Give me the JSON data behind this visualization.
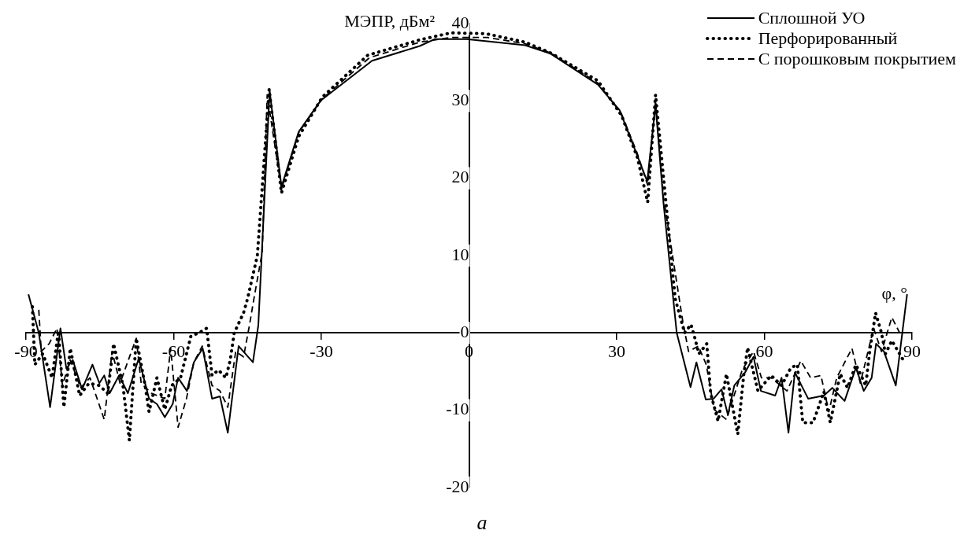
{
  "chart_data": {
    "type": "line",
    "title": "а",
    "xlabel": "φ, °",
    "ylabel": "МЭПР, дБм²",
    "xlim": [
      -90,
      90
    ],
    "xticks": [
      -90,
      -60,
      -30,
      0,
      30,
      60,
      90
    ],
    "ylim": [
      -20,
      40
    ],
    "yticks": [
      -20,
      -10,
      0,
      10,
      20,
      30,
      40
    ],
    "grid": false,
    "legend": "top right",
    "marker": "none",
    "series": [
      {
        "name": "Сплошной УО",
        "color": "#000000",
        "line_style": "solid",
        "x": [
          -89.5,
          -87.4,
          -85.1,
          -83,
          -81.8,
          -80.5,
          -78.6,
          -76.5,
          -75.1,
          -74.1,
          -73,
          -71.1,
          -69.3,
          -67.1,
          -65,
          -63.4,
          -61.8,
          -60.2,
          -59.1,
          -57.3,
          -55.9,
          -54.1,
          -52.2,
          -50.6,
          -49,
          -46.8,
          -43.9,
          -42.8,
          -40.5,
          -38.1,
          -34.6,
          -30.2,
          -19.7,
          -10,
          -6.9,
          -0.5,
          11.4,
          16.6,
          26.2,
          30.6,
          33.1,
          36.2,
          37.9,
          39.5,
          42.2,
          45,
          46.2,
          48.1,
          49.7,
          51.3,
          52.6,
          53.9,
          56.1,
          57.8,
          59.3,
          62.2,
          63.5,
          64.9,
          66.2,
          68.9,
          72.1,
          73.8,
          76.3,
          78.6,
          80.2,
          81.8,
          82.7,
          84.3,
          86.7,
          89
        ],
        "values": [
          5,
          0,
          -9.6,
          0.6,
          -4.6,
          -3.5,
          -7.3,
          -4.1,
          -6.5,
          -5.5,
          -7.8,
          -5.5,
          -7.8,
          -3.3,
          -8.5,
          -9.2,
          -10.9,
          -9.2,
          -5.8,
          -7.5,
          -3.8,
          -2,
          -8.5,
          -8.2,
          -12.9,
          -1.7,
          -3.8,
          1,
          31.3,
          18.9,
          26,
          30,
          35.2,
          37.1,
          38,
          38,
          37.2,
          36.1,
          32.1,
          28.8,
          24.7,
          19.6,
          29.5,
          16.9,
          0,
          -7,
          -3.8,
          -8.6,
          -8.5,
          -7.3,
          -10.6,
          -6.8,
          -5.1,
          -3.1,
          -7.5,
          -8.1,
          -5.8,
          -12.9,
          -5.1,
          -8.5,
          -8.1,
          -7.1,
          -8.8,
          -4.5,
          -7.5,
          -5.8,
          -1.4,
          -2.4,
          -6.8,
          5
        ]
      },
      {
        "name": "Перфорированный",
        "color": "#000000",
        "line_style": "dotted",
        "x": [
          -88.7,
          -88.2,
          -86.6,
          -84.7,
          -83.4,
          -82.3,
          -81,
          -79.1,
          -77.2,
          -75.1,
          -73.4,
          -72.2,
          -70.3,
          -69,
          -67.6,
          -65.8,
          -65,
          -63.4,
          -61.8,
          -60.4,
          -58.6,
          -56.5,
          -54.9,
          -53.3,
          -52.2,
          -50.9,
          -49.4,
          -48.5,
          -47.7,
          -45.8,
          -45,
          -43,
          -40.6,
          -38.1,
          -34.6,
          -29.8,
          -20.6,
          -10,
          -3.7,
          3.4,
          11.4,
          16.6,
          26.2,
          31,
          34.2,
          36.3,
          37.9,
          41.9,
          43.8,
          45.1,
          45.9,
          46.7,
          48.3,
          49.1,
          50.6,
          52.3,
          54.6,
          55.8,
          56.6,
          58.7,
          61.4,
          63.5,
          65.4,
          66.7,
          67.8,
          69.9,
          72.1,
          73.4,
          75.4,
          76.9,
          78.6,
          80.6,
          81.4,
          82.6,
          83.8,
          84.6,
          85.9,
          88.2
        ],
        "values": [
          3.4,
          -4.1,
          -2.7,
          -5.8,
          0.3,
          -9.6,
          -2,
          -8.1,
          -6.5,
          -6.8,
          -7.8,
          -1.4,
          -6.8,
          -13.9,
          -0.7,
          -6.8,
          -10.2,
          -5.8,
          -9.9,
          -6.8,
          -5.8,
          -0.4,
          0,
          0.6,
          -5.5,
          -4.8,
          -5.8,
          -3.5,
          0,
          2.6,
          4.4,
          10,
          31.5,
          18.1,
          25.4,
          30.5,
          35.9,
          37.9,
          38.8,
          38.7,
          37.6,
          36.2,
          32.6,
          28.1,
          22.7,
          16.9,
          30.8,
          4.4,
          0,
          1.1,
          -0.7,
          -2.7,
          -1.4,
          -7.8,
          -11.4,
          -5.3,
          -13.1,
          -5.5,
          -1.9,
          -7.5,
          -5.5,
          -6.8,
          -4.5,
          -4.1,
          -11.6,
          -11.6,
          -7.6,
          -11.6,
          -5.3,
          -7.1,
          -4.1,
          -6.8,
          -2.4,
          2.6,
          0,
          -2.7,
          -1,
          -3.5
        ]
      },
      {
        "name": "С порошковым покрытием",
        "color": "#000000",
        "line_style": "dashed",
        "x": [
          -87.4,
          -86.9,
          -85.3,
          -83.7,
          -82.6,
          -81,
          -78.9,
          -77,
          -74.1,
          -72.5,
          -70.9,
          -67.6,
          -66.6,
          -64.5,
          -61.8,
          -60.6,
          -59.1,
          -57.4,
          -55.9,
          -54.2,
          -52.2,
          -50.6,
          -49,
          -47.4,
          -45.8,
          -44.6,
          -43.7,
          -42,
          -41,
          -38.1,
          -34.6,
          -29.8,
          -20.2,
          -10,
          -3.7,
          3.8,
          11.4,
          16.6,
          26.2,
          31,
          34.2,
          36.3,
          37.9,
          39.5,
          43.4,
          44.6,
          46.6,
          48.2,
          49.8,
          52.3,
          55.5,
          57.8,
          59.4,
          61.4,
          64.6,
          67.4,
          69.4,
          71.5,
          73.1,
          74.7,
          77.8,
          79.5,
          82.2,
          83.8,
          85.9,
          87.5
        ],
        "values": [
          3,
          -2.4,
          -1.4,
          0.6,
          -6.8,
          -3.5,
          -7.1,
          -5.8,
          -11.2,
          -2.4,
          -6.5,
          -0.7,
          -6.5,
          -7.8,
          -8.5,
          -2,
          -12.2,
          -8.5,
          -3.8,
          -1.7,
          -6.8,
          -7.5,
          -9.6,
          -2.4,
          -3.1,
          1,
          4.4,
          10.5,
          30.8,
          18.6,
          25.9,
          30.3,
          35.6,
          37.6,
          38.2,
          38.2,
          37.4,
          36.2,
          32.3,
          28.3,
          23.2,
          19.1,
          30,
          17.6,
          1.6,
          -2.4,
          -1.7,
          -4.1,
          -9.9,
          -11.2,
          -4.8,
          -2.4,
          -5.8,
          -5.8,
          -7.5,
          -3.6,
          -5.8,
          -5.5,
          -10.2,
          -5.8,
          -2,
          -6.5,
          0.6,
          -2.4,
          2,
          0
        ]
      }
    ]
  }
}
